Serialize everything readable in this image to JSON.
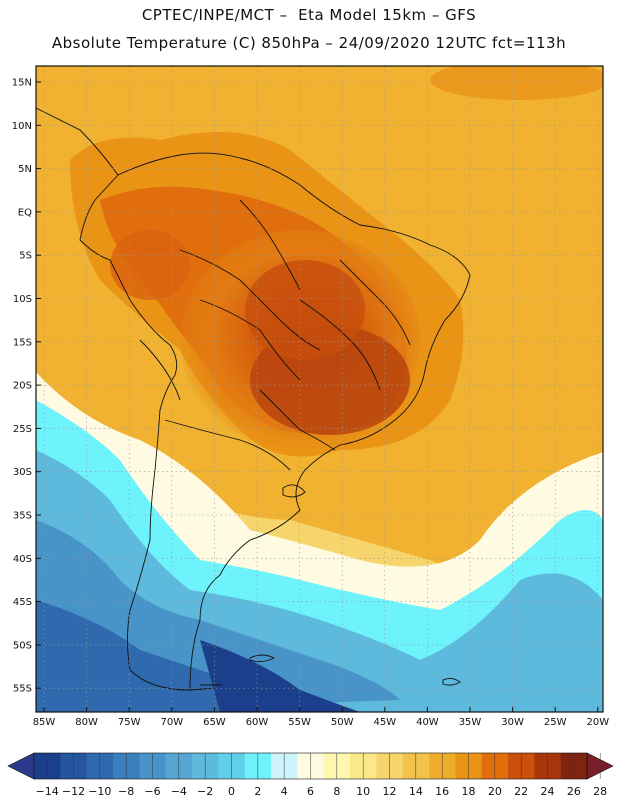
{
  "header": {
    "line1": "CPTEC/INPE/MCT –  Eta Model 15km – GFS",
    "line2": "Absolute Temperature (C) 850hPa – 24/09/2020 12UTC fct=113h"
  },
  "map": {
    "lat_labels": [
      "15N",
      "10N",
      "5N",
      "EQ",
      "5S",
      "10S",
      "15S",
      "20S",
      "25S",
      "30S",
      "35S",
      "40S",
      "45S",
      "50S",
      "55S"
    ],
    "lon_labels": [
      "85W",
      "80W",
      "75W",
      "70W",
      "65W",
      "60W",
      "55W",
      "50W",
      "45W",
      "40W",
      "35W",
      "30W",
      "25W",
      "20W"
    ]
  },
  "colorbar": {
    "labels": [
      "-14",
      "-12",
      "-10",
      "-8",
      "-6",
      "-4",
      "-2",
      "0",
      "2",
      "4",
      "6",
      "8",
      "10",
      "12",
      "14",
      "16",
      "18",
      "20",
      "22",
      "24",
      "26",
      "28"
    ],
    "colors": [
      "#1b3f8a",
      "#24559d",
      "#2f6aaf",
      "#3a7fbd",
      "#4893c8",
      "#55a7d2",
      "#5dbadc",
      "#5fd0e8",
      "#6ef2fb",
      "#cdf4fb",
      "#fffbe3",
      "#fff6b0",
      "#fbe88a",
      "#f6d66c",
      "#f2c24a",
      "#eeae2c",
      "#ea9416",
      "#e06e0c",
      "#cc500b",
      "#a8350c",
      "#7e2410"
    ],
    "under_color": "#2a3a8a",
    "over_color": "#7a1f2a"
  }
}
